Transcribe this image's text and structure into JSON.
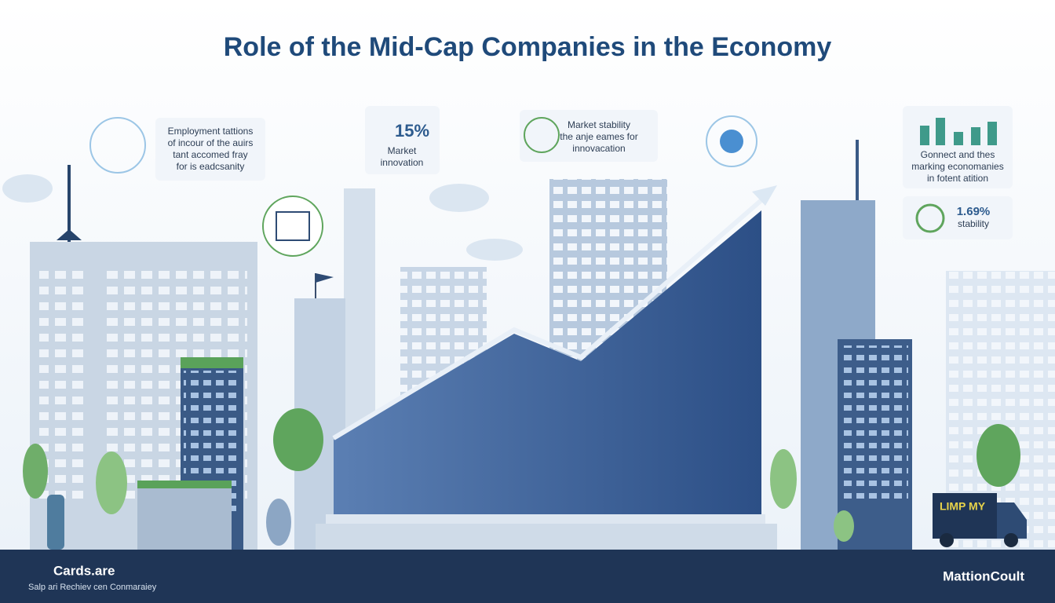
{
  "header": {
    "title": "Role of the Mid-Cap Companies in the Economy"
  },
  "callouts": [
    {
      "lines": [
        "Employment tattions",
        "of incour of the auirs",
        "tant accomed fray",
        "for is eadcsanity"
      ]
    },
    {
      "figure": "15%",
      "lines": [
        "Market",
        "innovation"
      ]
    },
    {
      "lines": [
        "Market stability",
        "the anje eames for",
        "innovacation"
      ]
    },
    {
      "lines": [
        "Gonnect and thes",
        "marking economanies",
        "in fotent atition"
      ]
    },
    {
      "figure": "1.69%",
      "lines": [
        "stability"
      ]
    }
  ],
  "truck": {
    "label": "LIMP MY"
  },
  "footer": {
    "brand": "Cards.are",
    "tagline": "Salp ari Rechiev cen Conmaraiey",
    "credit": "MattionCoult"
  }
}
